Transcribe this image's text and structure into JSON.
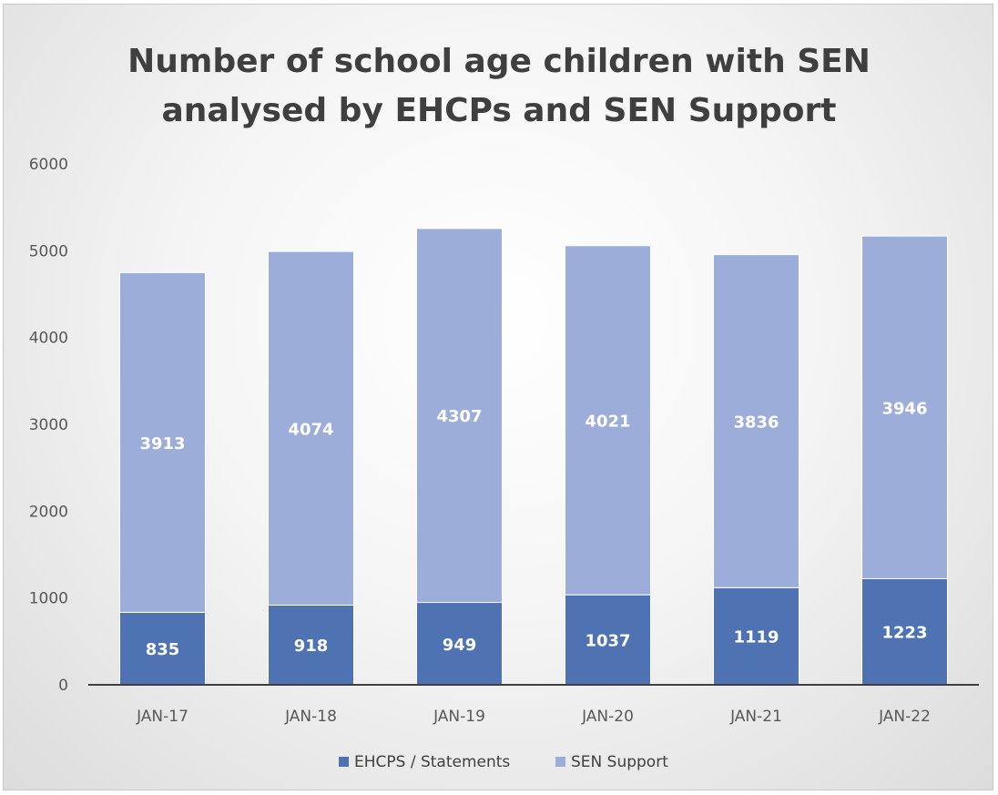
{
  "chart_data": {
    "type": "bar",
    "stacked": true,
    "title": [
      "Number of school age children with SEN",
      "analysed by EHCPs and SEN Support"
    ],
    "categories": [
      "JAN-17",
      "JAN-18",
      "JAN-19",
      "JAN-20",
      "JAN-21",
      "JAN-22"
    ],
    "series": [
      {
        "name": "EHCPS / Statements",
        "values": [
          835,
          918,
          949,
          1037,
          1119,
          1223
        ],
        "color": "#4f72b3"
      },
      {
        "name": "SEN Support",
        "values": [
          3913,
          4074,
          4307,
          4021,
          3836,
          3946
        ],
        "color": "#9dadd9"
      }
    ],
    "ylim": [
      0,
      6000
    ],
    "yticks": [
      0,
      1000,
      2000,
      3000,
      4000,
      5000,
      6000
    ],
    "grid": false,
    "legend": "bottom",
    "data_labels": true
  }
}
